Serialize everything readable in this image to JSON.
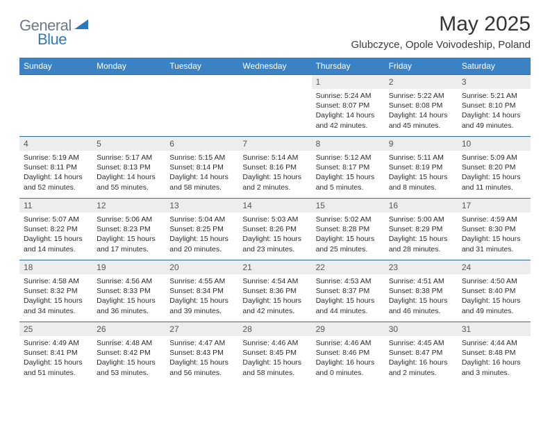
{
  "logo": {
    "part1": "General",
    "part2": "Blue"
  },
  "title": "May 2025",
  "location": "Glubczyce, Opole Voivodeship, Poland",
  "colors": {
    "header_bg": "#3b82c4",
    "header_text": "#ffffff",
    "row_border": "#2f6da8",
    "daynum_bg": "#ededed",
    "logo_gray": "#6b7a86",
    "logo_blue": "#2f79b9"
  },
  "weekdays": [
    "Sunday",
    "Monday",
    "Tuesday",
    "Wednesday",
    "Thursday",
    "Friday",
    "Saturday"
  ],
  "weeks": [
    [
      {
        "empty": true
      },
      {
        "empty": true
      },
      {
        "empty": true
      },
      {
        "empty": true
      },
      {
        "n": "1",
        "sr": "Sunrise: 5:24 AM",
        "ss": "Sunset: 8:07 PM",
        "d1": "Daylight: 14 hours",
        "d2": "and 42 minutes."
      },
      {
        "n": "2",
        "sr": "Sunrise: 5:22 AM",
        "ss": "Sunset: 8:08 PM",
        "d1": "Daylight: 14 hours",
        "d2": "and 45 minutes."
      },
      {
        "n": "3",
        "sr": "Sunrise: 5:21 AM",
        "ss": "Sunset: 8:10 PM",
        "d1": "Daylight: 14 hours",
        "d2": "and 49 minutes."
      }
    ],
    [
      {
        "n": "4",
        "sr": "Sunrise: 5:19 AM",
        "ss": "Sunset: 8:11 PM",
        "d1": "Daylight: 14 hours",
        "d2": "and 52 minutes."
      },
      {
        "n": "5",
        "sr": "Sunrise: 5:17 AM",
        "ss": "Sunset: 8:13 PM",
        "d1": "Daylight: 14 hours",
        "d2": "and 55 minutes."
      },
      {
        "n": "6",
        "sr": "Sunrise: 5:15 AM",
        "ss": "Sunset: 8:14 PM",
        "d1": "Daylight: 14 hours",
        "d2": "and 58 minutes."
      },
      {
        "n": "7",
        "sr": "Sunrise: 5:14 AM",
        "ss": "Sunset: 8:16 PM",
        "d1": "Daylight: 15 hours",
        "d2": "and 2 minutes."
      },
      {
        "n": "8",
        "sr": "Sunrise: 5:12 AM",
        "ss": "Sunset: 8:17 PM",
        "d1": "Daylight: 15 hours",
        "d2": "and 5 minutes."
      },
      {
        "n": "9",
        "sr": "Sunrise: 5:11 AM",
        "ss": "Sunset: 8:19 PM",
        "d1": "Daylight: 15 hours",
        "d2": "and 8 minutes."
      },
      {
        "n": "10",
        "sr": "Sunrise: 5:09 AM",
        "ss": "Sunset: 8:20 PM",
        "d1": "Daylight: 15 hours",
        "d2": "and 11 minutes."
      }
    ],
    [
      {
        "n": "11",
        "sr": "Sunrise: 5:07 AM",
        "ss": "Sunset: 8:22 PM",
        "d1": "Daylight: 15 hours",
        "d2": "and 14 minutes."
      },
      {
        "n": "12",
        "sr": "Sunrise: 5:06 AM",
        "ss": "Sunset: 8:23 PM",
        "d1": "Daylight: 15 hours",
        "d2": "and 17 minutes."
      },
      {
        "n": "13",
        "sr": "Sunrise: 5:04 AM",
        "ss": "Sunset: 8:25 PM",
        "d1": "Daylight: 15 hours",
        "d2": "and 20 minutes."
      },
      {
        "n": "14",
        "sr": "Sunrise: 5:03 AM",
        "ss": "Sunset: 8:26 PM",
        "d1": "Daylight: 15 hours",
        "d2": "and 23 minutes."
      },
      {
        "n": "15",
        "sr": "Sunrise: 5:02 AM",
        "ss": "Sunset: 8:28 PM",
        "d1": "Daylight: 15 hours",
        "d2": "and 25 minutes."
      },
      {
        "n": "16",
        "sr": "Sunrise: 5:00 AM",
        "ss": "Sunset: 8:29 PM",
        "d1": "Daylight: 15 hours",
        "d2": "and 28 minutes."
      },
      {
        "n": "17",
        "sr": "Sunrise: 4:59 AM",
        "ss": "Sunset: 8:30 PM",
        "d1": "Daylight: 15 hours",
        "d2": "and 31 minutes."
      }
    ],
    [
      {
        "n": "18",
        "sr": "Sunrise: 4:58 AM",
        "ss": "Sunset: 8:32 PM",
        "d1": "Daylight: 15 hours",
        "d2": "and 34 minutes."
      },
      {
        "n": "19",
        "sr": "Sunrise: 4:56 AM",
        "ss": "Sunset: 8:33 PM",
        "d1": "Daylight: 15 hours",
        "d2": "and 36 minutes."
      },
      {
        "n": "20",
        "sr": "Sunrise: 4:55 AM",
        "ss": "Sunset: 8:34 PM",
        "d1": "Daylight: 15 hours",
        "d2": "and 39 minutes."
      },
      {
        "n": "21",
        "sr": "Sunrise: 4:54 AM",
        "ss": "Sunset: 8:36 PM",
        "d1": "Daylight: 15 hours",
        "d2": "and 42 minutes."
      },
      {
        "n": "22",
        "sr": "Sunrise: 4:53 AM",
        "ss": "Sunset: 8:37 PM",
        "d1": "Daylight: 15 hours",
        "d2": "and 44 minutes."
      },
      {
        "n": "23",
        "sr": "Sunrise: 4:51 AM",
        "ss": "Sunset: 8:38 PM",
        "d1": "Daylight: 15 hours",
        "d2": "and 46 minutes."
      },
      {
        "n": "24",
        "sr": "Sunrise: 4:50 AM",
        "ss": "Sunset: 8:40 PM",
        "d1": "Daylight: 15 hours",
        "d2": "and 49 minutes."
      }
    ],
    [
      {
        "n": "25",
        "sr": "Sunrise: 4:49 AM",
        "ss": "Sunset: 8:41 PM",
        "d1": "Daylight: 15 hours",
        "d2": "and 51 minutes."
      },
      {
        "n": "26",
        "sr": "Sunrise: 4:48 AM",
        "ss": "Sunset: 8:42 PM",
        "d1": "Daylight: 15 hours",
        "d2": "and 53 minutes."
      },
      {
        "n": "27",
        "sr": "Sunrise: 4:47 AM",
        "ss": "Sunset: 8:43 PM",
        "d1": "Daylight: 15 hours",
        "d2": "and 56 minutes."
      },
      {
        "n": "28",
        "sr": "Sunrise: 4:46 AM",
        "ss": "Sunset: 8:45 PM",
        "d1": "Daylight: 15 hours",
        "d2": "and 58 minutes."
      },
      {
        "n": "29",
        "sr": "Sunrise: 4:46 AM",
        "ss": "Sunset: 8:46 PM",
        "d1": "Daylight: 16 hours",
        "d2": "and 0 minutes."
      },
      {
        "n": "30",
        "sr": "Sunrise: 4:45 AM",
        "ss": "Sunset: 8:47 PM",
        "d1": "Daylight: 16 hours",
        "d2": "and 2 minutes."
      },
      {
        "n": "31",
        "sr": "Sunrise: 4:44 AM",
        "ss": "Sunset: 8:48 PM",
        "d1": "Daylight: 16 hours",
        "d2": "and 3 minutes."
      }
    ]
  ]
}
